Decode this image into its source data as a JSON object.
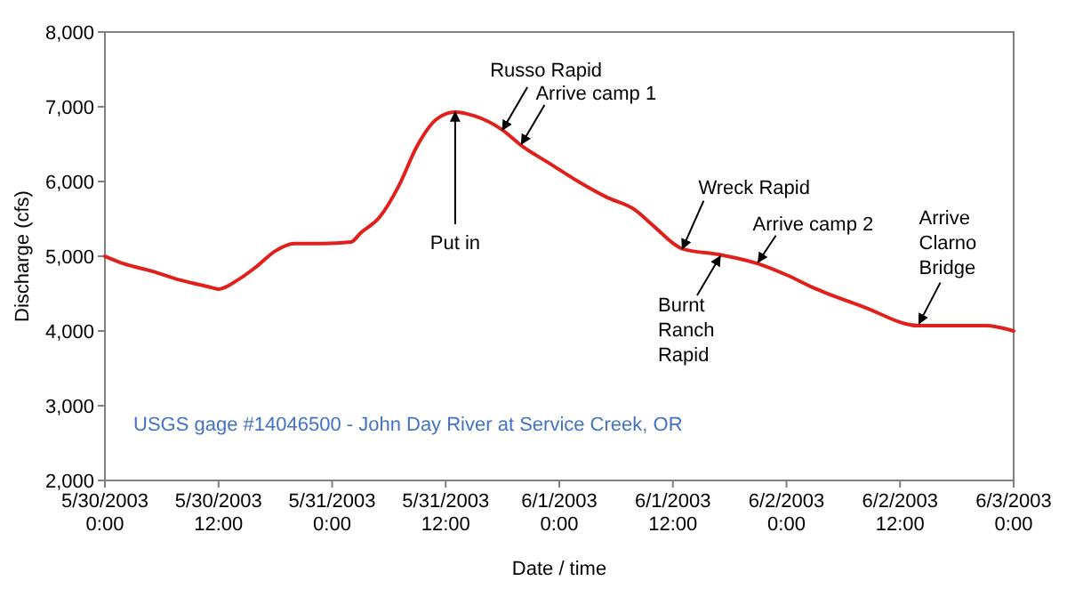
{
  "chart_data": {
    "type": "line",
    "xlabel": "Date / time",
    "ylabel": "Discharge (cfs)",
    "x": [
      "2003-05-30T00:00",
      "2003-05-30T02:00",
      "2003-05-30T05:00",
      "2003-05-30T08:00",
      "2003-05-30T11:00",
      "2003-05-30T12:00",
      "2003-05-30T14:00",
      "2003-05-30T16:00",
      "2003-05-30T18:00",
      "2003-05-30T20:00",
      "2003-05-30T23:00",
      "2003-05-31T02:00",
      "2003-05-31T03:00",
      "2003-05-31T05:00",
      "2003-05-31T07:00",
      "2003-05-31T09:00",
      "2003-05-31T11:00",
      "2003-05-31T13:00",
      "2003-05-31T15:00",
      "2003-05-31T18:00",
      "2003-05-31T20:00",
      "2003-05-31T23:00",
      "2003-06-01T02:00",
      "2003-06-01T05:00",
      "2003-06-01T08:00",
      "2003-06-01T10:00",
      "2003-06-01T13:00",
      "2003-06-01T17:00",
      "2003-06-01T21:00",
      "2003-06-02T00:00",
      "2003-06-02T03:00",
      "2003-06-02T08:00",
      "2003-06-02T14:00",
      "2003-06-02T18:00",
      "2003-06-02T21:00",
      "2003-06-03T00:00"
    ],
    "series": [
      {
        "color": "#e0201b",
        "values": [
          5000,
          4900,
          4800,
          4680,
          4590,
          4560,
          4680,
          4860,
          5070,
          5170,
          5170,
          5190,
          5310,
          5520,
          5930,
          6480,
          6830,
          6930,
          6880,
          6690,
          6480,
          6240,
          6000,
          5790,
          5620,
          5400,
          5100,
          5020,
          4900,
          4750,
          4570,
          4330,
          4070,
          4070,
          4070,
          4000
        ]
      }
    ],
    "xlim": [
      "2003-05-30T00:00",
      "2003-06-03T00:00"
    ],
    "xticks": [
      {
        "value": "2003-05-30T00:00",
        "label": "5/30/2003\n0:00"
      },
      {
        "value": "2003-05-30T12:00",
        "label": "5/30/2003\n12:00"
      },
      {
        "value": "2003-05-31T00:00",
        "label": "5/31/2003\n0:00"
      },
      {
        "value": "2003-05-31T12:00",
        "label": "5/31/2003\n12:00"
      },
      {
        "value": "2003-06-01T00:00",
        "label": "6/1/2003\n0:00"
      },
      {
        "value": "2003-06-01T12:00",
        "label": "6/1/2003\n12:00"
      },
      {
        "value": "2003-06-02T00:00",
        "label": "6/2/2003\n0:00"
      },
      {
        "value": "2003-06-02T12:00",
        "label": "6/2/2003\n12:00"
      },
      {
        "value": "2003-06-03T00:00",
        "label": "6/3/2003\n0:00"
      }
    ],
    "ylim": [
      2000,
      8000
    ],
    "yticks": [
      {
        "value": 2000,
        "label": "2,000"
      },
      {
        "value": 3000,
        "label": "3,000"
      },
      {
        "value": 4000,
        "label": "4,000"
      },
      {
        "value": 5000,
        "label": "5,000"
      },
      {
        "value": 6000,
        "label": "6,000"
      },
      {
        "value": 7000,
        "label": "7,000"
      },
      {
        "value": 8000,
        "label": "8,000"
      }
    ],
    "grid": false,
    "marker": "none",
    "line_style": "solid",
    "annotations": [
      {
        "text": "Russo Rapid",
        "x": "2003-05-31T18:00",
        "y": 6690
      },
      {
        "text": "Arrive camp 1",
        "x": "2003-05-31T20:00",
        "y": 6500
      },
      {
        "text": "Put in",
        "x": "2003-05-31T13:00",
        "y": 6930
      },
      {
        "text": "Wreck Rapid",
        "x": "2003-06-01T13:00",
        "y": 5100
      },
      {
        "text": "Burnt Ranch Rapid",
        "x": "2003-06-01T17:00",
        "y": 5000
      },
      {
        "text": "Arrive camp 2",
        "x": "2003-06-01T21:00",
        "y": 4920
      },
      {
        "text": "Arrive Clarno Bridge",
        "x": "2003-06-02T14:00",
        "y": 4100
      },
      "USGS gage #14046500 - John Day River at Service Creek, OR"
    ]
  }
}
